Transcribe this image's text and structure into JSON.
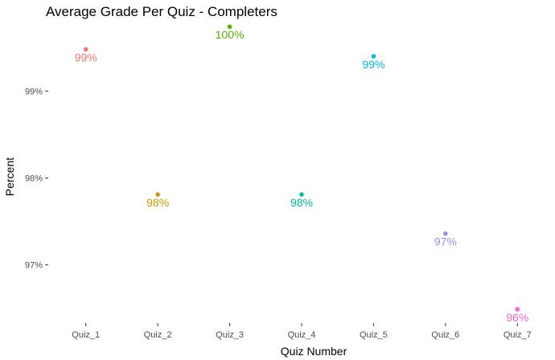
{
  "chart_data": {
    "type": "scatter",
    "title": "Average Grade Per Quiz - Completers",
    "xlabel": "Quiz Number",
    "ylabel": "Percent",
    "ylim": [
      96.35,
      99.77
    ],
    "yticks": [
      {
        "value": 97,
        "label": "97%"
      },
      {
        "value": 98,
        "label": "98%"
      },
      {
        "value": 99,
        "label": "99%"
      }
    ],
    "grid": false,
    "legend": "none",
    "categories": [
      "Quiz_1",
      "Quiz_2",
      "Quiz_3",
      "Quiz_4",
      "Quiz_5",
      "Quiz_6",
      "Quiz_7"
    ],
    "values": [
      99.48,
      97.81,
      99.74,
      97.81,
      99.4,
      97.36,
      96.49
    ],
    "point_labels": [
      "99%",
      "98%",
      "100%",
      "98%",
      "99%",
      "97%",
      "96%"
    ],
    "colors": [
      "#F8766D",
      "#C49A00",
      "#53B400",
      "#00C094",
      "#00B6EB",
      "#A58AFF",
      "#FB61D7"
    ]
  }
}
